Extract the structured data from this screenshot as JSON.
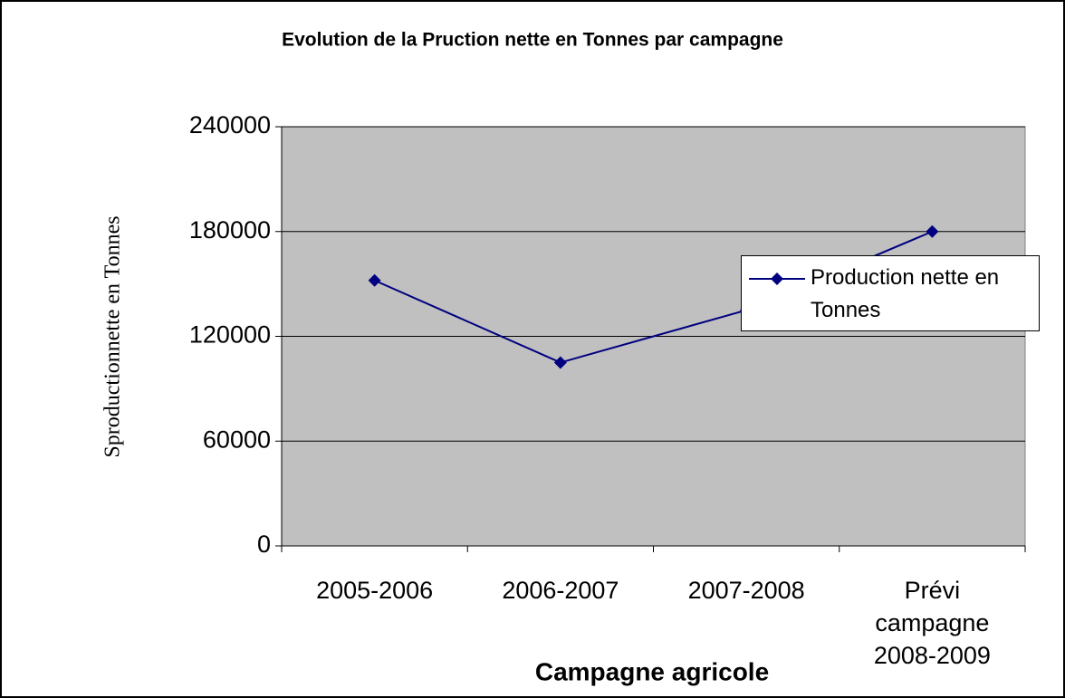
{
  "chart_data": {
    "type": "line",
    "title": "Evolution de la Pruction nette en Tonnes par campagne",
    "x_label": "Campagne agricole",
    "y_label": "Sproductionnette en Tonnes",
    "categories": [
      "2005-2006",
      "2006-2007",
      "2007-2008",
      "Prévi campagne 2008-2009"
    ],
    "series": [
      {
        "name": "Production nette en Tonnes",
        "color": "#000080",
        "values": [
          152000,
          105000,
          135000,
          180000
        ]
      }
    ],
    "ylim": [
      0,
      240000
    ],
    "yticks": [
      0,
      60000,
      120000,
      180000,
      240000
    ],
    "grid": true,
    "legend": "right"
  }
}
